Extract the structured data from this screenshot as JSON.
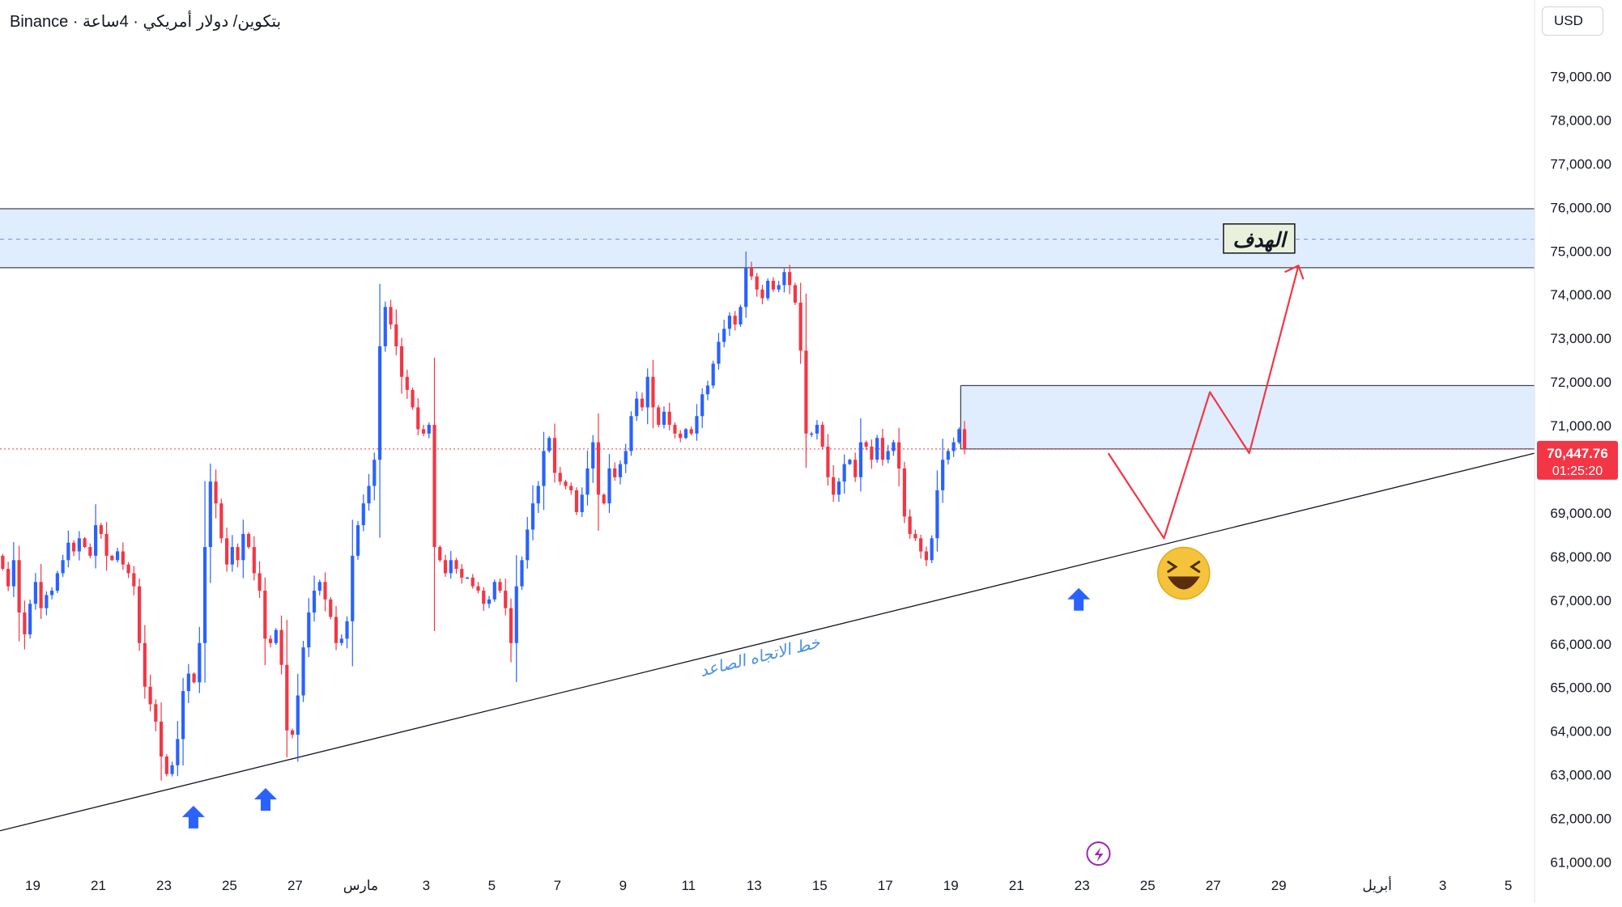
{
  "header": {
    "symbol_title": "بتكوين/ دولار أمريكي · 4ساعة · Binance"
  },
  "currency_button": "USD",
  "price_tag": {
    "price": "70,447.76",
    "countdown": "01:25:20"
  },
  "colors": {
    "up": "#2962ff",
    "down": "#f23645",
    "zone_fill": "#dbeafe",
    "projection": "#f23645",
    "trendline": "#131722",
    "annotation_blue": "#4a90e2"
  },
  "annotations": {
    "target_label": "الهدف",
    "trendline_label": "خط الاتجاه الصاعد",
    "emoji": "😆"
  },
  "chart_data": {
    "type": "candlestick",
    "title": "",
    "xlabel": "",
    "ylabel": "",
    "y_axis": {
      "range": [
        60500,
        80500
      ],
      "tick_values": [
        61000,
        62000,
        63000,
        64000,
        65000,
        66000,
        67000,
        68000,
        69000,
        70000,
        71000,
        72000,
        73000,
        74000,
        75000,
        76000,
        77000,
        78000,
        79000
      ],
      "tick_labels": [
        "61,000.00",
        "62,000.00",
        "63,000.00",
        "64,000.00",
        "65,000.00",
        "66,000.00",
        "67,000.00",
        "68,000.00",
        "69,000.00",
        "70,000.00",
        "71,000.00",
        "72,000.00",
        "73,000.00",
        "74,000.00",
        "75,000.00",
        "76,000.00",
        "77,000.00",
        "78,000.00",
        "79,000.00"
      ],
      "position": "right"
    },
    "x_axis": {
      "range_days": [
        -11,
        35.8
      ],
      "ticks": [
        {
          "day": -10,
          "label": "19"
        },
        {
          "day": -8,
          "label": "21"
        },
        {
          "day": -6,
          "label": "23"
        },
        {
          "day": -4,
          "label": "25"
        },
        {
          "day": -2,
          "label": "27"
        },
        {
          "day": 0,
          "label": "مارس"
        },
        {
          "day": 2,
          "label": "3"
        },
        {
          "day": 4,
          "label": "5"
        },
        {
          "day": 6,
          "label": "7"
        },
        {
          "day": 8,
          "label": "9"
        },
        {
          "day": 10,
          "label": "11"
        },
        {
          "day": 12,
          "label": "13"
        },
        {
          "day": 14,
          "label": "15"
        },
        {
          "day": 16,
          "label": "17"
        },
        {
          "day": 18,
          "label": "19"
        },
        {
          "day": 20,
          "label": "21"
        },
        {
          "day": 22,
          "label": "23"
        },
        {
          "day": 24,
          "label": "25"
        },
        {
          "day": 26,
          "label": "27"
        },
        {
          "day": 28,
          "label": "29"
        },
        {
          "day": 31,
          "label": "أبريل"
        },
        {
          "day": 33,
          "label": "3"
        },
        {
          "day": 35,
          "label": "5"
        }
      ]
    },
    "candle_interval_hours": 4,
    "candle_start_day": -11,
    "candle_start_price": 68000,
    "candle_closes": [
      67700,
      67300,
      67900,
      66700,
      66200,
      66900,
      67400,
      66800,
      67100,
      67200,
      67600,
      67900,
      68300,
      68100,
      68400,
      68200,
      68000,
      68700,
      68500,
      68000,
      67900,
      68100,
      67800,
      67600,
      67300,
      66000,
      65000,
      64600,
      64200,
      63400,
      63000,
      63200,
      63800,
      64900,
      65300,
      65100,
      66000,
      68200,
      69700,
      69200,
      68400,
      67800,
      68200,
      67900,
      68500,
      68200,
      67600,
      67200,
      66100,
      66000,
      66300,
      65500,
      64000,
      63900,
      64800,
      65900,
      66700,
      67200,
      67400,
      67000,
      66600,
      66000,
      66100,
      66500,
      68000,
      68700,
      69200,
      69600,
      70200,
      72800,
      73700,
      73300,
      72800,
      72100,
      71800,
      71400,
      70900,
      70800,
      71000,
      68200,
      67900,
      67600,
      67900,
      67700,
      67500,
      67500,
      67300,
      67200,
      66900,
      67000,
      67400,
      67200,
      66800,
      66000,
      67300,
      67900,
      68600,
      69200,
      69600,
      70400,
      70700,
      69900,
      69700,
      69600,
      69500,
      69000,
      69400,
      70000,
      70600,
      69400,
      69200,
      70000,
      69800,
      70100,
      70400,
      71200,
      71600,
      71400,
      72100,
      71400,
      71000,
      71300,
      71000,
      70800,
      70700,
      70900,
      70800,
      71200,
      71700,
      71900,
      72400,
      72900,
      73200,
      73500,
      73300,
      73700,
      74600,
      74400,
      74100,
      73900,
      74300,
      74100,
      74200,
      74500,
      74200,
      73800,
      72700,
      70800,
      70800,
      71000,
      70500,
      69800,
      69400,
      69700,
      70100,
      70200,
      69800,
      70600,
      70500,
      70200,
      70700,
      70200,
      70400,
      70600,
      70000,
      68900,
      68500,
      68400,
      68100,
      67900,
      68400,
      69500,
      70200,
      70400,
      70600,
      70900,
      70447.76
    ],
    "zones": [
      {
        "name": "target-resistance-zone",
        "from": 74600,
        "to": 75950,
        "mid": 75250,
        "day_start": -11,
        "day_end": 35.8
      },
      {
        "name": "range-zone",
        "from": 70447.76,
        "to": 71900,
        "day_start": 18.3,
        "day_end": 35.8
      }
    ],
    "trendline": {
      "start": {
        "day": -11,
        "price": 61700
      },
      "end": {
        "day": 35.8,
        "price": 70350
      }
    },
    "support_touches_days": [
      -5.1,
      -2.9,
      21.9
    ],
    "projection_path": [
      {
        "day": 22.8,
        "price": 70350
      },
      {
        "day": 24.5,
        "price": 68400
      },
      {
        "day": 25.9,
        "price": 71750
      },
      {
        "day": 27.1,
        "price": 70350
      },
      {
        "day": 28.6,
        "price": 74650
      }
    ],
    "current_price": 70447.76,
    "grid": false,
    "legend": "none"
  }
}
